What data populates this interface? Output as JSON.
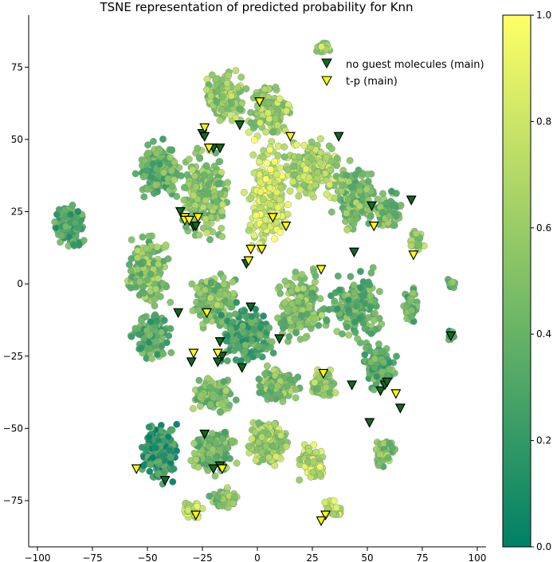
{
  "chart_data": {
    "type": "scatter",
    "title": "TSNE representation of predicted probability for Knn",
    "xlabel": "",
    "ylabel": "",
    "xlim": [
      -104,
      104
    ],
    "ylim": [
      -91,
      93
    ],
    "xticks": [
      -100,
      -75,
      -50,
      -25,
      0,
      25,
      50,
      75,
      100
    ],
    "yticks": [
      -75,
      -50,
      -25,
      0,
      25,
      50,
      75
    ],
    "spines": "left-bottom",
    "grid": false,
    "colormap": {
      "name": "summer_r",
      "low": "#008066",
      "high": "#ffff66"
    },
    "colorbar": {
      "range": [
        0.0,
        1.0
      ],
      "ticks": [
        0.0,
        0.2,
        0.4,
        0.6,
        0.8,
        1.0
      ]
    },
    "legend": {
      "placement": "top-right",
      "entries": [
        {
          "label": "no guest molecules (main)",
          "marker": "triangle-down",
          "color": "#0b6b1e"
        },
        {
          "label": "t-p (main)",
          "marker": "triangle-down",
          "color": "#ffff00"
        }
      ]
    },
    "clusters": [
      {
        "x": -85,
        "y": 20,
        "rx": 8,
        "ry": 9,
        "n": 150,
        "p": 0.3
      },
      {
        "x": -45,
        "y": 40,
        "rx": 12,
        "ry": 12,
        "n": 200,
        "p": 0.4
      },
      {
        "x": -25,
        "y": 30,
        "rx": 15,
        "ry": 20,
        "n": 220,
        "p": 0.55
      },
      {
        "x": -15,
        "y": 65,
        "rx": 12,
        "ry": 10,
        "n": 160,
        "p": 0.6
      },
      {
        "x": 5,
        "y": 60,
        "rx": 12,
        "ry": 12,
        "n": 160,
        "p": 0.65
      },
      {
        "x": 5,
        "y": 30,
        "rx": 12,
        "ry": 22,
        "n": 240,
        "p": 0.85
      },
      {
        "x": 25,
        "y": 40,
        "rx": 18,
        "ry": 14,
        "n": 200,
        "p": 0.7
      },
      {
        "x": 45,
        "y": 30,
        "rx": 12,
        "ry": 15,
        "n": 160,
        "p": 0.5
      },
      {
        "x": 60,
        "y": 25,
        "rx": 8,
        "ry": 8,
        "n": 70,
        "p": 0.45
      },
      {
        "x": 72,
        "y": 15,
        "rx": 5,
        "ry": 5,
        "n": 35,
        "p": 0.6
      },
      {
        "x": 30,
        "y": 82,
        "rx": 4,
        "ry": 3,
        "n": 25,
        "p": 0.7
      },
      {
        "x": -50,
        "y": 5,
        "rx": 12,
        "ry": 15,
        "n": 180,
        "p": 0.5
      },
      {
        "x": -48,
        "y": -18,
        "rx": 10,
        "ry": 10,
        "n": 150,
        "p": 0.35
      },
      {
        "x": -20,
        "y": -5,
        "rx": 12,
        "ry": 12,
        "n": 200,
        "p": 0.5
      },
      {
        "x": -5,
        "y": -18,
        "rx": 15,
        "ry": 12,
        "n": 260,
        "p": 0.3
      },
      {
        "x": 20,
        "y": -8,
        "rx": 15,
        "ry": 14,
        "n": 200,
        "p": 0.5
      },
      {
        "x": 45,
        "y": -8,
        "rx": 15,
        "ry": 15,
        "n": 180,
        "p": 0.4
      },
      {
        "x": 55,
        "y": -28,
        "rx": 10,
        "ry": 10,
        "n": 100,
        "p": 0.35
      },
      {
        "x": 10,
        "y": -35,
        "rx": 12,
        "ry": 8,
        "n": 130,
        "p": 0.5
      },
      {
        "x": 30,
        "y": -35,
        "rx": 8,
        "ry": 6,
        "n": 80,
        "p": 0.6
      },
      {
        "x": -20,
        "y": -38,
        "rx": 12,
        "ry": 8,
        "n": 120,
        "p": 0.5
      },
      {
        "x": -45,
        "y": -58,
        "rx": 10,
        "ry": 12,
        "n": 220,
        "p": 0.2
      },
      {
        "x": -20,
        "y": -58,
        "rx": 12,
        "ry": 10,
        "n": 200,
        "p": 0.45
      },
      {
        "x": 5,
        "y": -55,
        "rx": 12,
        "ry": 10,
        "n": 180,
        "p": 0.65
      },
      {
        "x": 25,
        "y": -62,
        "rx": 8,
        "ry": 8,
        "n": 80,
        "p": 0.75
      },
      {
        "x": 58,
        "y": -58,
        "rx": 6,
        "ry": 6,
        "n": 50,
        "p": 0.5
      },
      {
        "x": -30,
        "y": -78,
        "rx": 6,
        "ry": 4,
        "n": 40,
        "p": 0.8
      },
      {
        "x": 35,
        "y": -78,
        "rx": 6,
        "ry": 4,
        "n": 30,
        "p": 0.8
      },
      {
        "x": -15,
        "y": -75,
        "rx": 10,
        "ry": 5,
        "n": 60,
        "p": 0.5
      },
      {
        "x": 88,
        "y": -18,
        "rx": 2,
        "ry": 3,
        "n": 12,
        "p": 0.3
      },
      {
        "x": 88,
        "y": 0,
        "rx": 3,
        "ry": 2,
        "n": 12,
        "p": 0.4
      },
      {
        "x": 70,
        "y": -8,
        "rx": 5,
        "ry": 8,
        "n": 40,
        "p": 0.4
      }
    ],
    "series": [
      {
        "name": "no guest molecules (main)",
        "points": [
          [
            -25,
            52
          ],
          [
            -24,
            51
          ],
          [
            -20,
            47
          ],
          [
            -17,
            47
          ],
          [
            -8,
            55
          ],
          [
            -35,
            25
          ],
          [
            -33,
            23
          ],
          [
            -29,
            20
          ],
          [
            -28,
            20
          ],
          [
            -5,
            7
          ],
          [
            -3,
            -8
          ],
          [
            -36,
            -10
          ],
          [
            -17,
            -20
          ],
          [
            -30,
            -27
          ],
          [
            -16,
            -25
          ],
          [
            -18,
            -27
          ],
          [
            -7,
            -29
          ],
          [
            10,
            -19
          ],
          [
            37,
            51
          ],
          [
            52,
            27
          ],
          [
            70,
            29
          ],
          [
            44,
            11
          ],
          [
            43,
            -35
          ],
          [
            56,
            -37
          ],
          [
            58,
            -35
          ],
          [
            59,
            -34
          ],
          [
            51,
            -48
          ],
          [
            65,
            -43
          ],
          [
            88,
            -18
          ],
          [
            -24,
            -52
          ],
          [
            -42,
            -68
          ],
          [
            -20,
            -64
          ],
          [
            -17,
            -63
          ]
        ]
      },
      {
        "name": "t-p (main)",
        "points": [
          [
            -24,
            54
          ],
          [
            -22,
            47
          ],
          [
            1,
            63
          ],
          [
            15,
            51
          ],
          [
            -33,
            23
          ],
          [
            -33,
            22
          ],
          [
            -31,
            22
          ],
          [
            -27,
            23
          ],
          [
            -3,
            12
          ],
          [
            -4,
            8
          ],
          [
            2,
            12
          ],
          [
            7,
            23
          ],
          [
            13,
            20
          ],
          [
            29,
            5
          ],
          [
            53,
            20
          ],
          [
            71,
            10
          ],
          [
            -23,
            -10
          ],
          [
            -29,
            -24
          ],
          [
            -18,
            -24
          ],
          [
            30,
            -31
          ],
          [
            63,
            -38
          ],
          [
            -55,
            -64
          ],
          [
            -28,
            -80
          ],
          [
            -16,
            -64
          ],
          [
            31,
            -80
          ],
          [
            29,
            -82
          ]
        ]
      }
    ]
  }
}
